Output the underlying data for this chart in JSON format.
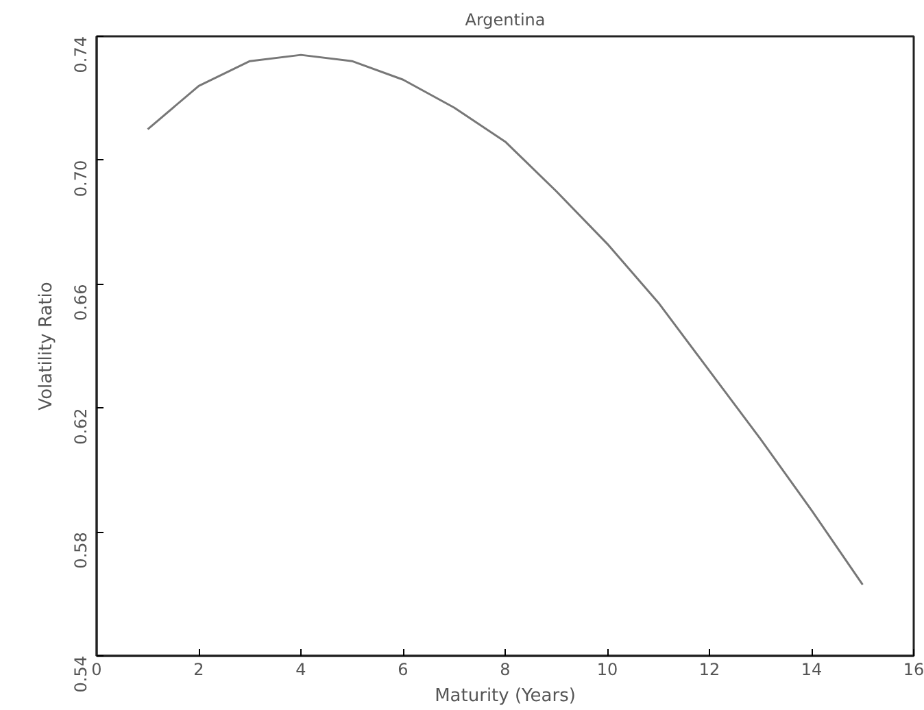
{
  "chart_data": {
    "type": "line",
    "title": "Argentina",
    "xlabel": "Maturity (Years)",
    "ylabel": "Volatility Ratio",
    "x": [
      1,
      2,
      3,
      4,
      5,
      6,
      7,
      8,
      9,
      10,
      11,
      12,
      13,
      14,
      15
    ],
    "series": [
      {
        "color": "#777777",
        "values": [
          0.71,
          0.724,
          0.732,
          0.734,
          0.732,
          0.726,
          0.717,
          0.706,
          0.69,
          0.673,
          0.654,
          0.632,
          0.61,
          0.587,
          0.563
        ]
      }
    ],
    "xlim": [
      0,
      16
    ],
    "ylim": [
      0.54,
      0.74
    ],
    "xticks": [
      0,
      2,
      4,
      6,
      8,
      10,
      12,
      14,
      16
    ],
    "yticks": [
      {
        "value": 0.54,
        "label": "0.54"
      },
      {
        "value": 0.58,
        "label": "0.58"
      },
      {
        "value": 0.62,
        "label": "0.62"
      },
      {
        "value": 0.66,
        "label": "0.66"
      },
      {
        "value": 0.7,
        "label": "0.70"
      },
      {
        "value": 0.74,
        "label": "0.74"
      }
    ],
    "grid": false,
    "line_style": "solid"
  }
}
